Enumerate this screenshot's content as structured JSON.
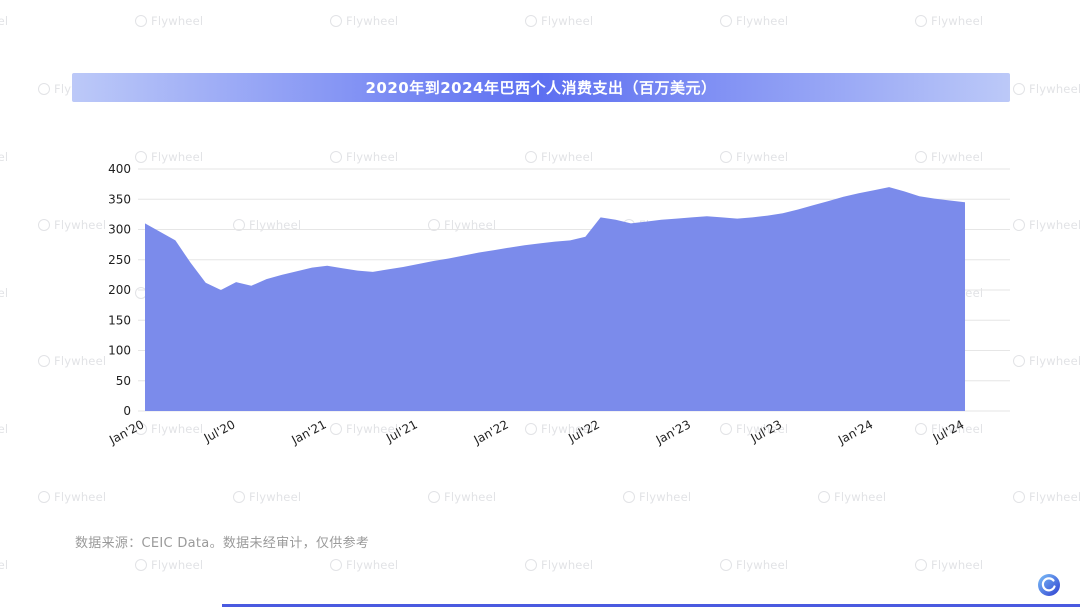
{
  "title": {
    "text": "2020年到2024年巴西个人消费支出（百万美元）"
  },
  "watermark": {
    "text": "Flywheel"
  },
  "footer": {
    "source_note": "数据来源：CEIC Data。数据未经审计，仅供参考"
  },
  "colors": {
    "area_fill": "#7b8beb",
    "banner_edge": "#bcc9f8",
    "banner_center": "#5d6ff1",
    "grid_line": "#e6e6e6",
    "bottom_bar": "#4a5ae0",
    "axis_text": "#1f1f1f"
  },
  "chart_data": {
    "type": "area",
    "title": "2020年到2024年巴西个人消费支出（百万美元）",
    "xlabel": "",
    "ylabel": "",
    "ylim": [
      0,
      400
    ],
    "grid": true,
    "legend": false,
    "x_unit": "month",
    "x": [
      "2020-01",
      "2020-02",
      "2020-03",
      "2020-04",
      "2020-05",
      "2020-06",
      "2020-07",
      "2020-08",
      "2020-09",
      "2020-10",
      "2020-11",
      "2020-12",
      "2021-01",
      "2021-02",
      "2021-03",
      "2021-04",
      "2021-05",
      "2021-06",
      "2021-07",
      "2021-08",
      "2021-09",
      "2021-10",
      "2021-11",
      "2021-12",
      "2022-01",
      "2022-02",
      "2022-03",
      "2022-04",
      "2022-05",
      "2022-06",
      "2022-07",
      "2022-08",
      "2022-09",
      "2022-10",
      "2022-11",
      "2022-12",
      "2023-01",
      "2023-02",
      "2023-03",
      "2023-04",
      "2023-05",
      "2023-06",
      "2023-07",
      "2023-08",
      "2023-09",
      "2023-10",
      "2023-11",
      "2023-12",
      "2024-01",
      "2024-02",
      "2024-03",
      "2024-04",
      "2024-05",
      "2024-06",
      "2024-07"
    ],
    "values": [
      310,
      296,
      282,
      245,
      212,
      200,
      213,
      207,
      218,
      225,
      231,
      237,
      240,
      236,
      232,
      230,
      234,
      238,
      243,
      248,
      252,
      257,
      262,
      266,
      270,
      274,
      277,
      280,
      282,
      288,
      320,
      316,
      310,
      313,
      316,
      318,
      320,
      322,
      320,
      318,
      320,
      323,
      327,
      333,
      340,
      347,
      354,
      360,
      365,
      370,
      363,
      355,
      351,
      348,
      345
    ],
    "y_ticks": [
      0,
      50,
      100,
      150,
      200,
      250,
      300,
      350,
      400
    ],
    "x_tick_labels": [
      "Jan'20",
      "Jul'20",
      "Jan'21",
      "Jul'21",
      "Jan'22",
      "Jul'22",
      "Jan'23",
      "Jul'23",
      "Jan'24",
      "Jul'24"
    ],
    "x_tick_month_index": [
      0,
      6,
      12,
      18,
      24,
      30,
      36,
      42,
      48,
      54
    ]
  }
}
